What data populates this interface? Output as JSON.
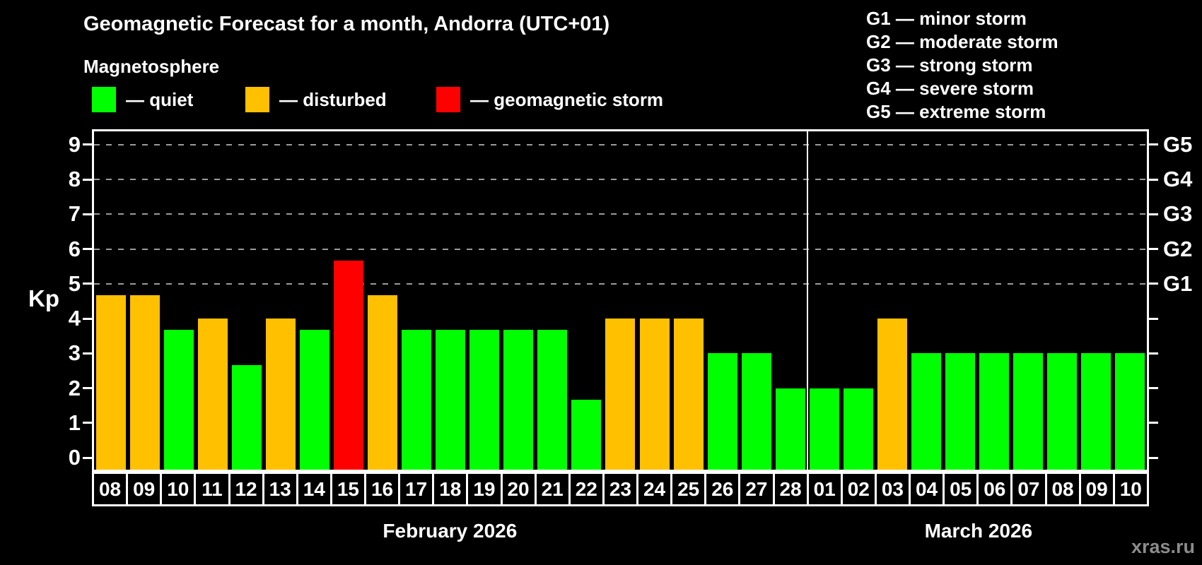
{
  "title": "Geomagnetic Forecast for a month, Andorra (UTC+01)",
  "subtitle": "Magnetosphere",
  "legend": {
    "items": [
      {
        "label": "— quiet",
        "state": "quiet"
      },
      {
        "label": "— disturbed",
        "state": "disturbed"
      },
      {
        "label": "— geomagnetic storm",
        "state": "storm"
      }
    ]
  },
  "g_legend": [
    "G1 — minor storm",
    "G2 — moderate storm",
    "G3 — strong storm",
    "G4 — severe storm",
    "G5 — extreme storm"
  ],
  "watermark": "xras.ru",
  "colors": {
    "background": "#000000",
    "quiet": "#00ff00",
    "disturbed": "#ffc000",
    "storm": "#ff0000",
    "axis": "#ffffff",
    "grid": "#9b9b9b",
    "text": "#ffffff",
    "watermark": "#8c8c8c"
  },
  "chart_data": {
    "type": "bar",
    "title": "Geomagnetic Forecast for a month, Andorra (UTC+01)",
    "ylabel": "Kp",
    "ylim": [
      0,
      9
    ],
    "yticks": [
      0,
      1,
      2,
      3,
      4,
      5,
      6,
      7,
      8,
      9
    ],
    "grid_levels": [
      5,
      6,
      7,
      8,
      9
    ],
    "right_axis_labels": [
      {
        "kp": 5,
        "label": "G1"
      },
      {
        "kp": 6,
        "label": "G2"
      },
      {
        "kp": 7,
        "label": "G3"
      },
      {
        "kp": 8,
        "label": "G4"
      },
      {
        "kp": 9,
        "label": "G5"
      }
    ],
    "legend_position": "top",
    "grid": "dashed-on-storm-levels-only",
    "months": [
      {
        "label": "February 2026",
        "bars": [
          {
            "day": "08",
            "kp": 4.67,
            "state": "disturbed"
          },
          {
            "day": "09",
            "kp": 4.67,
            "state": "disturbed"
          },
          {
            "day": "10",
            "kp": 3.67,
            "state": "quiet"
          },
          {
            "day": "11",
            "kp": 4.0,
            "state": "disturbed"
          },
          {
            "day": "12",
            "kp": 2.67,
            "state": "quiet"
          },
          {
            "day": "13",
            "kp": 4.0,
            "state": "disturbed"
          },
          {
            "day": "14",
            "kp": 3.67,
            "state": "quiet"
          },
          {
            "day": "15",
            "kp": 5.67,
            "state": "storm"
          },
          {
            "day": "16",
            "kp": 4.67,
            "state": "disturbed"
          },
          {
            "day": "17",
            "kp": 3.67,
            "state": "quiet"
          },
          {
            "day": "18",
            "kp": 3.67,
            "state": "quiet"
          },
          {
            "day": "19",
            "kp": 3.67,
            "state": "quiet"
          },
          {
            "day": "20",
            "kp": 3.67,
            "state": "quiet"
          },
          {
            "day": "21",
            "kp": 3.67,
            "state": "quiet"
          },
          {
            "day": "22",
            "kp": 1.67,
            "state": "quiet"
          },
          {
            "day": "23",
            "kp": 4.0,
            "state": "disturbed"
          },
          {
            "day": "24",
            "kp": 4.0,
            "state": "disturbed"
          },
          {
            "day": "25",
            "kp": 4.0,
            "state": "disturbed"
          },
          {
            "day": "26",
            "kp": 3.0,
            "state": "quiet"
          },
          {
            "day": "27",
            "kp": 3.0,
            "state": "quiet"
          },
          {
            "day": "28",
            "kp": 2.0,
            "state": "quiet"
          }
        ]
      },
      {
        "label": "March 2026",
        "bars": [
          {
            "day": "01",
            "kp": 2.0,
            "state": "quiet"
          },
          {
            "day": "02",
            "kp": 2.0,
            "state": "quiet"
          },
          {
            "day": "03",
            "kp": 4.0,
            "state": "disturbed"
          },
          {
            "day": "04",
            "kp": 3.0,
            "state": "quiet"
          },
          {
            "day": "05",
            "kp": 3.0,
            "state": "quiet"
          },
          {
            "day": "06",
            "kp": 3.0,
            "state": "quiet"
          },
          {
            "day": "07",
            "kp": 3.0,
            "state": "quiet"
          },
          {
            "day": "08",
            "kp": 3.0,
            "state": "quiet"
          },
          {
            "day": "09",
            "kp": 3.0,
            "state": "quiet"
          },
          {
            "day": "10",
            "kp": 3.0,
            "state": "quiet"
          }
        ]
      }
    ]
  }
}
